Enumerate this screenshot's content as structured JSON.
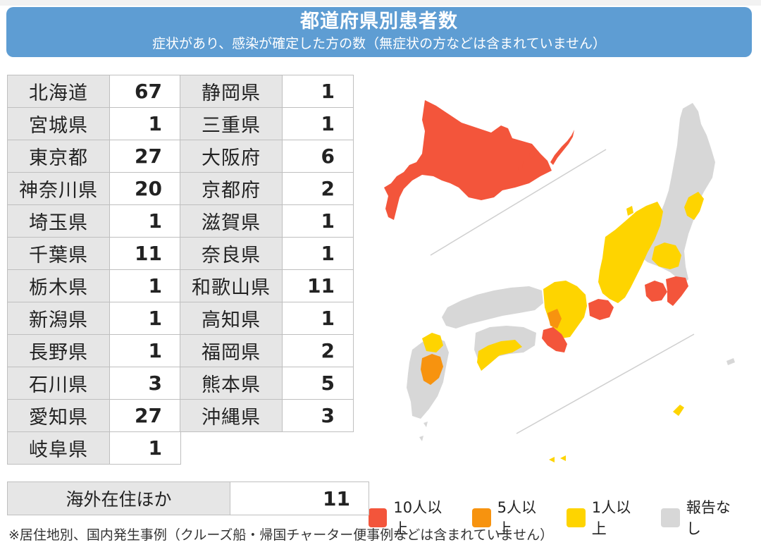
{
  "header": {
    "title": "都道府県別患者数",
    "subtitle": "症状があり、感染が確定した方の数（無症状の方などは含まれていません）"
  },
  "colors": {
    "header_bg": "#5e9dd3",
    "ten_plus": "#f3553b",
    "five_plus": "#f7930f",
    "one_plus": "#fed400",
    "none": "#d7d7d7"
  },
  "chart_data": {
    "type": "table",
    "title": "都道府県別患者数",
    "subtitle": "症状があり、感染が確定した方の数（無症状の方などは含まれていません）",
    "columns": [
      [
        {
          "name": "北海道",
          "value": 67
        },
        {
          "name": "宮城県",
          "value": 1
        },
        {
          "name": "東京都",
          "value": 27
        },
        {
          "name": "神奈川県",
          "value": 20
        },
        {
          "name": "埼玉県",
          "value": 1
        },
        {
          "name": "千葉県",
          "value": 11
        },
        {
          "name": "栃木県",
          "value": 1
        },
        {
          "name": "新潟県",
          "value": 1
        },
        {
          "name": "長野県",
          "value": 1
        },
        {
          "name": "石川県",
          "value": 3
        },
        {
          "name": "愛知県",
          "value": 27
        },
        {
          "name": "岐阜県",
          "value": 1
        }
      ],
      [
        {
          "name": "静岡県",
          "value": 1
        },
        {
          "name": "三重県",
          "value": 1
        },
        {
          "name": "大阪府",
          "value": 6
        },
        {
          "name": "京都府",
          "value": 2
        },
        {
          "name": "滋賀県",
          "value": 1
        },
        {
          "name": "奈良県",
          "value": 1
        },
        {
          "name": "和歌山県",
          "value": 11
        },
        {
          "name": "高知県",
          "value": 1
        },
        {
          "name": "福岡県",
          "value": 2
        },
        {
          "name": "熊本県",
          "value": 5
        },
        {
          "name": "沖縄県",
          "value": 3
        }
      ]
    ],
    "overseas": {
      "name": "海外在住ほか",
      "value": 11
    },
    "legend": [
      {
        "label": "10人以上",
        "color": "#f3553b"
      },
      {
        "label": "5人以上",
        "color": "#f7930f"
      },
      {
        "label": "1人以上",
        "color": "#fed400"
      },
      {
        "label": "報告なし",
        "color": "#d7d7d7"
      }
    ],
    "legend_position": "bottom-right"
  },
  "footnote": "※居住地別、国内発生事例（クルーズ船・帰国チャーター便事例などは含まれていません）"
}
